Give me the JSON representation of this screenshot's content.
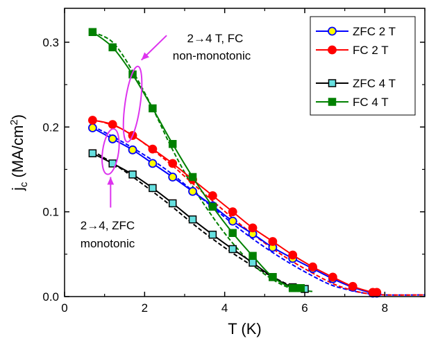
{
  "chart_data": {
    "type": "line",
    "xlabel": "T (K)",
    "ylabel": {
      "base": "j",
      "sub": "c",
      "rest": " (MA/cm",
      "sup": "2",
      "close": ")"
    },
    "xlim": [
      0,
      9
    ],
    "ylim": [
      0,
      0.34
    ],
    "xticks": [
      0,
      2,
      4,
      6,
      8
    ],
    "xtick_labels": [
      "0",
      "2",
      "4",
      "6",
      "8"
    ],
    "yticks": [
      0.0,
      0.1,
      0.2,
      0.3
    ],
    "ytick_labels": [
      "0.0",
      "0.1",
      "0.2",
      "0.3"
    ],
    "grid": false,
    "legend_position": "top-right",
    "series": [
      {
        "name": "ZFC 2 T",
        "color": "#0000ff",
        "marker": "circle",
        "marker_fill": "#ffff00",
        "marker_edge": "#0000ff",
        "x": [
          0.7,
          1.2,
          1.7,
          2.2,
          2.7,
          3.2,
          3.7,
          4.2,
          4.7,
          5.2,
          5.7,
          6.2,
          6.7,
          7.2,
          7.7,
          7.8
        ],
        "y": [
          0.199,
          0.186,
          0.173,
          0.157,
          0.141,
          0.124,
          0.107,
          0.089,
          0.074,
          0.058,
          0.045,
          0.033,
          0.021,
          0.011,
          0.004,
          0.004
        ]
      },
      {
        "name": "FC 2 T",
        "color": "#ff0000",
        "marker": "circle",
        "marker_fill": "#ff0000",
        "marker_edge": "#ff0000",
        "x": [
          0.7,
          1.2,
          1.7,
          2.2,
          2.7,
          3.2,
          3.7,
          4.2,
          4.7,
          5.2,
          5.7,
          6.2,
          6.7,
          7.2,
          7.7,
          7.8
        ],
        "y": [
          0.208,
          0.203,
          0.19,
          0.174,
          0.157,
          0.138,
          0.119,
          0.1,
          0.081,
          0.065,
          0.049,
          0.035,
          0.023,
          0.012,
          0.005,
          0.005
        ]
      },
      {
        "name": "ZFC 4 T",
        "color": "#000000",
        "marker": "square",
        "marker_fill": "#66e0e0",
        "marker_edge": "#000000",
        "x": [
          0.7,
          1.2,
          1.7,
          2.2,
          2.7,
          3.2,
          3.7,
          4.2,
          4.7,
          5.2,
          5.7,
          6.0
        ],
        "y": [
          0.169,
          0.157,
          0.144,
          0.128,
          0.11,
          0.091,
          0.073,
          0.056,
          0.04,
          0.023,
          0.011,
          0.009
        ]
      },
      {
        "name": "FC 4 T",
        "color": "#008000",
        "marker": "square",
        "marker_fill": "#008000",
        "marker_edge": "#008000",
        "x": [
          0.7,
          1.2,
          1.7,
          2.2,
          2.7,
          3.2,
          3.7,
          4.2,
          4.7,
          5.2,
          5.7,
          5.9
        ],
        "y": [
          0.312,
          0.294,
          0.262,
          0.222,
          0.18,
          0.141,
          0.106,
          0.075,
          0.048,
          0.023,
          0.01,
          0.01
        ]
      }
    ],
    "dashed_series": [
      {
        "color": "#0000ff",
        "x": [
          0.7,
          1.5,
          2.5,
          3.5,
          4.5,
          5.5,
          6.5,
          7.0,
          7.5,
          8.0,
          9.0
        ],
        "y": [
          0.201,
          0.181,
          0.151,
          0.113,
          0.075,
          0.043,
          0.017,
          0.009,
          0.004,
          0.002,
          0.002
        ]
      },
      {
        "color": "#ff0000",
        "x": [
          0.7,
          1.5,
          2.5,
          3.5,
          4.5,
          5.5,
          6.5,
          7.0,
          7.5,
          8.0,
          9.0
        ],
        "y": [
          0.209,
          0.196,
          0.162,
          0.121,
          0.081,
          0.047,
          0.02,
          0.01,
          0.004,
          0.002,
          0.002
        ]
      },
      {
        "color": "#000000",
        "x": [
          0.7,
          1.5,
          2.5,
          3.5,
          4.5,
          5.5,
          5.9
        ],
        "y": [
          0.172,
          0.148,
          0.113,
          0.075,
          0.042,
          0.016,
          0.01
        ]
      },
      {
        "color": "#008000",
        "x": [
          0.7,
          1.2,
          1.7,
          2.2,
          2.7,
          3.2,
          3.7,
          4.2,
          4.7,
          5.2,
          5.7,
          6.2
        ],
        "y": [
          0.312,
          0.3,
          0.266,
          0.222,
          0.173,
          0.13,
          0.094,
          0.063,
          0.038,
          0.02,
          0.009,
          0.006
        ]
      }
    ],
    "legend": {
      "items": [
        {
          "label": "ZFC 2 T",
          "color": "#0000ff",
          "marker": "circle",
          "marker_fill": "#ffff00"
        },
        {
          "label": "FC 2 T",
          "color": "#ff0000",
          "marker": "circle",
          "marker_fill": "#ff0000"
        },
        {
          "label": "ZFC 4 T",
          "color": "#000000",
          "marker": "square",
          "marker_fill": "#66e0e0"
        },
        {
          "label": "FC 4 T",
          "color": "#008000",
          "marker": "square",
          "marker_fill": "#008000"
        }
      ]
    },
    "annotations": {
      "color": "#dd33ee",
      "fc_line1": "2→4 T, FC",
      "fc_line2": "non-monotonic",
      "zfc_line1": "2→4, ZFC",
      "zfc_line2": "monotonic",
      "ellipses": [
        {
          "cx": 1.7,
          "cy": 0.227,
          "rx_data": 0.19,
          "ry_data": 0.045
        },
        {
          "cx": 1.15,
          "cy": 0.171,
          "rx_data": 0.2,
          "ry_data": 0.027
        }
      ],
      "arrows": [
        {
          "from": [
            2.55,
            0.308
          ],
          "to": [
            1.92,
            0.279
          ]
        },
        {
          "from": [
            1.15,
            0.105
          ],
          "to": [
            1.15,
            0.141
          ]
        }
      ]
    }
  }
}
